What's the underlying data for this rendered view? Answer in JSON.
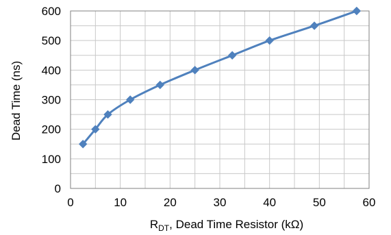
{
  "chart_data": {
    "type": "line",
    "title": "",
    "xlabel_main": "R",
    "xlabel_sub": "DT",
    "xlabel_rest": ", Dead Time Resistor (kΩ)",
    "ylabel": "Dead Time (ns)",
    "xlim": [
      0,
      60
    ],
    "ylim": [
      0,
      600
    ],
    "xticks": [
      0,
      10,
      20,
      30,
      40,
      50,
      60
    ],
    "yticks": [
      0,
      100,
      200,
      300,
      400,
      500,
      600
    ],
    "grid": true,
    "legend": "none",
    "series": [
      {
        "x": [
          2.5,
          5,
          7.5,
          12,
          18,
          25,
          32.5,
          40,
          49,
          57.5
        ],
        "y": [
          150,
          200,
          250,
          300,
          350,
          400,
          450,
          500,
          550,
          600
        ],
        "color": "#4f81bd",
        "marker": "diamond"
      }
    ]
  }
}
